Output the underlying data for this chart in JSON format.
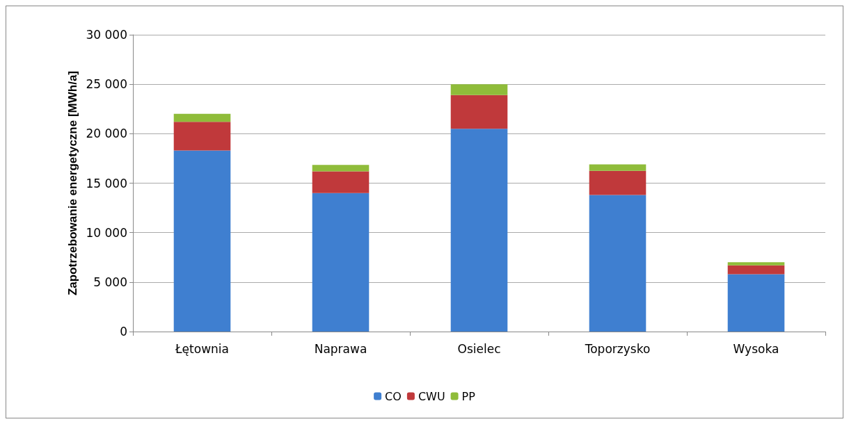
{
  "chart_data": {
    "type": "bar",
    "stacked": true,
    "ylabel": "Zapotrzebowanie energetyczne [MWh/a]",
    "categories": [
      "Łętownia",
      "Naprawa",
      "Osielec",
      "Toporzysko",
      "Wysoka"
    ],
    "series": [
      {
        "name": "CO",
        "color": "#3f7fd0",
        "values": [
          18300,
          14000,
          20500,
          13800,
          5800
        ]
      },
      {
        "name": "CWU",
        "color": "#c0393b",
        "values": [
          2900,
          2200,
          3400,
          2450,
          900
        ]
      },
      {
        "name": "PP",
        "color": "#8fbc3a",
        "values": [
          800,
          650,
          1100,
          650,
          300
        ]
      }
    ],
    "ylim": [
      0,
      30000
    ],
    "yticks": [
      {
        "value": 0,
        "label": "0"
      },
      {
        "value": 5000,
        "label": "5 000"
      },
      {
        "value": 10000,
        "label": "10 000"
      },
      {
        "value": 15000,
        "label": "15 000"
      },
      {
        "value": 20000,
        "label": "20 000"
      },
      {
        "value": 25000,
        "label": "25 000"
      },
      {
        "value": 30000,
        "label": "30 000"
      }
    ],
    "grid": "y",
    "legend": "bottom"
  }
}
